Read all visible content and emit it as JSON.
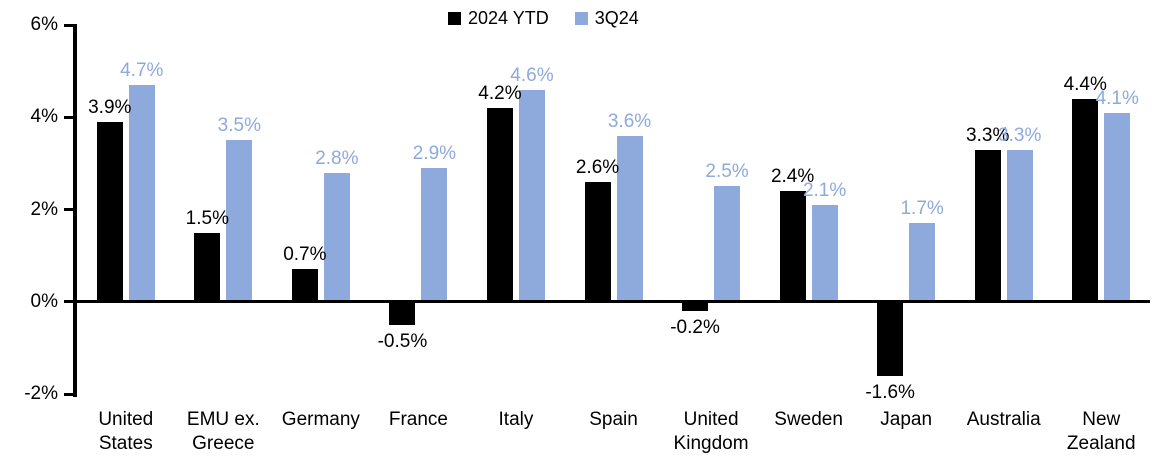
{
  "chart_data": {
    "type": "bar",
    "title": "",
    "xlabel": "",
    "ylabel": "",
    "categories": [
      "United States",
      "EMU ex. Greece",
      "Germany",
      "France",
      "Italy",
      "Spain",
      "United Kingdom",
      "Sweden",
      "Japan",
      "Australia",
      "New Zealand"
    ],
    "category_labels": [
      "United\nStates",
      "EMU ex.\nGreece",
      "Germany",
      "France",
      "Italy",
      "Spain",
      "United\nKingdom",
      "Sweden",
      "Japan",
      "Australia",
      "New\nZealand"
    ],
    "series": [
      {
        "name": "2024 YTD",
        "color": "#000000",
        "label_color": "#000000",
        "values": [
          3.9,
          1.5,
          0.7,
          -0.5,
          4.2,
          2.6,
          -0.2,
          2.4,
          -1.6,
          3.3,
          4.4
        ],
        "value_labels": [
          "3.9%",
          "1.5%",
          "0.7%",
          "-0.5%",
          "4.2%",
          "2.6%",
          "-0.2%",
          "2.4%",
          "-1.6%",
          "3.3%",
          "4.4%"
        ]
      },
      {
        "name": "3Q24",
        "color": "#8EA9DB",
        "label_color": "#8EA9DB",
        "values": [
          4.7,
          3.5,
          2.8,
          2.9,
          4.6,
          3.6,
          2.5,
          2.1,
          1.7,
          3.3,
          4.1
        ],
        "value_labels": [
          "4.7%",
          "3.5%",
          "2.8%",
          "2.9%",
          "4.6%",
          "3.6%",
          "2.5%",
          "2.1%",
          "1.7%",
          "3.3%",
          "4.1%"
        ]
      }
    ],
    "yticks": [
      {
        "label": "6%",
        "value": 6
      },
      {
        "label": "4%",
        "value": 4
      },
      {
        "label": "2%",
        "value": 2
      },
      {
        "label": "0%",
        "value": 0
      },
      {
        "label": "-2%",
        "value": -2
      }
    ],
    "ylim": [
      -2,
      6
    ],
    "grid": false,
    "legend_position": "top-center"
  }
}
